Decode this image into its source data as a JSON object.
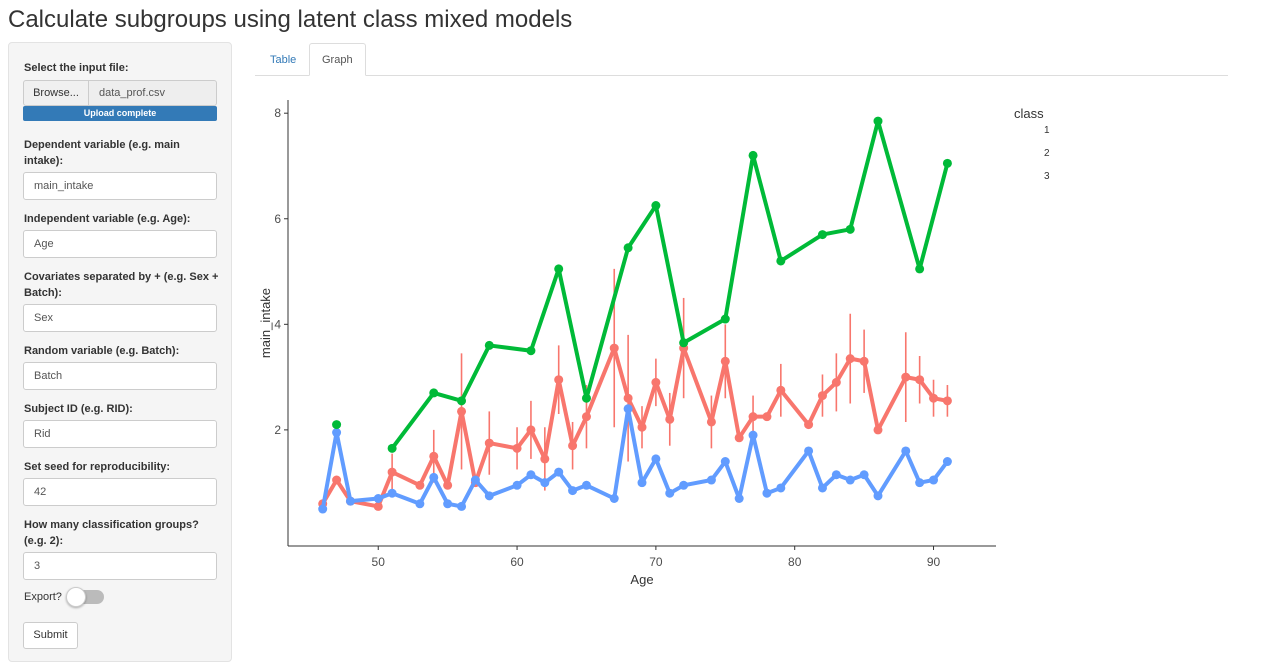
{
  "page_title": "Calculate subgroups using latent class mixed models",
  "sidebar": {
    "input_file_label": "Select the input file:",
    "browse_label": "Browse...",
    "file_name": "data_prof.csv",
    "upload_status": "Upload complete",
    "dependent_label": "Dependent variable (e.g. main intake):",
    "dependent_value": "main_intake",
    "independent_label": "Independent variable (e.g. Age):",
    "independent_value": "Age",
    "covariates_label": "Covariates separated by + (e.g. Sex + Batch):",
    "covariates_value": "Sex",
    "random_label": "Random variable (e.g. Batch):",
    "random_value": "Batch",
    "subject_label": "Subject ID (e.g. RID):",
    "subject_value": "Rid",
    "seed_label": "Set seed for reproducibility:",
    "seed_value": "42",
    "groups_label": "How many classification groups? (e.g. 2):",
    "groups_value": "3",
    "export_label": "Export?",
    "export_on": false,
    "submit_label": "Submit",
    "accent_color": "#337ab7"
  },
  "tabs": [
    {
      "label": "Table",
      "active": false
    },
    {
      "label": "Graph",
      "active": true
    }
  ],
  "chart_data": {
    "type": "line",
    "title": "",
    "xlabel": "Age",
    "ylabel": "main_intake",
    "xlim": [
      43.5,
      94.5
    ],
    "ylim": [
      -0.2,
      8.25
    ],
    "x_ticks": [
      50,
      60,
      70,
      80,
      90
    ],
    "y_ticks": [
      2,
      4,
      6,
      8
    ],
    "grid": false,
    "legend": {
      "title": "class",
      "position": "right"
    },
    "series": [
      {
        "name": "1",
        "color": "#F8766D",
        "x": [
          46,
          47,
          48,
          50,
          51,
          53,
          54,
          55,
          56,
          57,
          58,
          60,
          61,
          62,
          63,
          64,
          65,
          67,
          68,
          69,
          70,
          71,
          72,
          74,
          75,
          76,
          77,
          78,
          79,
          81,
          82,
          83,
          84,
          85,
          86,
          88,
          89,
          90,
          91
        ],
        "y": [
          0.6,
          1.05,
          0.65,
          0.55,
          1.2,
          0.95,
          1.5,
          0.95,
          2.35,
          1.0,
          1.75,
          1.65,
          2.0,
          1.45,
          2.95,
          1.7,
          2.25,
          3.55,
          2.6,
          2.05,
          2.9,
          2.2,
          3.55,
          2.15,
          3.3,
          1.85,
          2.25,
          2.25,
          2.75,
          2.1,
          2.65,
          2.9,
          3.35,
          3.3,
          2.0,
          3.0,
          2.95,
          2.6,
          2.55
        ],
        "err": [
          0,
          0,
          0,
          0,
          0.35,
          0,
          0.5,
          0,
          1.1,
          0,
          0.6,
          0.4,
          0.55,
          0.6,
          0.65,
          0.45,
          0.6,
          1.5,
          1.2,
          0.4,
          0.45,
          0.5,
          0.95,
          0.5,
          0.7,
          0,
          0.4,
          0,
          0.5,
          0,
          0.4,
          0.55,
          0.85,
          0.6,
          0,
          0.85,
          0.45,
          0.35,
          0.3
        ]
      },
      {
        "name": "2",
        "color": "#00BA38",
        "x": [
          47,
          51,
          54,
          56,
          58,
          61,
          63,
          65,
          68,
          70,
          72,
          75,
          77,
          79,
          82,
          84,
          86,
          89,
          91
        ],
        "y": [
          2.1,
          1.65,
          2.7,
          2.55,
          3.6,
          3.5,
          5.05,
          2.6,
          5.45,
          6.25,
          3.65,
          4.1,
          7.2,
          5.2,
          5.7,
          5.8,
          7.85,
          5.05,
          7.05
        ],
        "err": []
      },
      {
        "name": "3",
        "color": "#619CFF",
        "x": [
          46,
          47,
          48,
          50,
          51,
          53,
          54,
          55,
          56,
          57,
          58,
          60,
          61,
          62,
          63,
          64,
          65,
          67,
          68,
          69,
          70,
          71,
          72,
          74,
          75,
          76,
          77,
          78,
          79,
          81,
          82,
          83,
          84,
          85,
          86,
          88,
          89,
          90,
          91
        ],
        "y": [
          0.5,
          1.95,
          0.65,
          0.7,
          0.8,
          0.6,
          1.1,
          0.6,
          0.55,
          1.05,
          0.75,
          0.95,
          1.15,
          1.0,
          1.2,
          0.85,
          0.95,
          0.7,
          2.4,
          1.0,
          1.45,
          0.8,
          0.95,
          1.05,
          1.4,
          0.7,
          1.9,
          0.8,
          0.9,
          1.6,
          0.9,
          1.15,
          1.05,
          1.15,
          0.75,
          1.6,
          1.0,
          1.05,
          1.4
        ]
      }
    ]
  }
}
